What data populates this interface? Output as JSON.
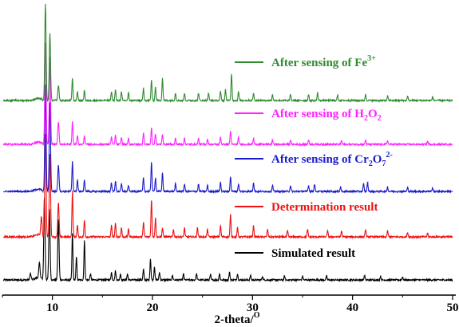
{
  "chart_data": {
    "type": "line",
    "xlabel": "2-theta/",
    "xlabel_unit": "O",
    "xlim": [
      5,
      50
    ],
    "x_ticks": [
      10,
      20,
      30,
      40,
      50
    ],
    "y_axis_visible": false,
    "grid": false,
    "colors": {
      "Fe": "#2e8b2e",
      "H2O2": "#ff22ff",
      "Cr2O7": "#1a1acc",
      "Determination": "#ee1111",
      "Simulated": "#000000"
    },
    "legend": [
      {
        "key": "Fe",
        "parts": [
          {
            "t": "After sensing of Fe"
          },
          {
            "t": "3+",
            "sup": true
          }
        ]
      },
      {
        "key": "H2O2",
        "parts": [
          {
            "t": "After sensing of H"
          },
          {
            "t": "2",
            "sub": true
          },
          {
            "t": "O"
          },
          {
            "t": "2",
            "sub": true
          }
        ]
      },
      {
        "key": "Cr2O7",
        "parts": [
          {
            "t": "After sensing of Cr"
          },
          {
            "t": "2",
            "sub": true
          },
          {
            "t": "O"
          },
          {
            "t": "7",
            "sub": true
          },
          {
            "t": "2-",
            "sup": true
          }
        ]
      },
      {
        "key": "Determination",
        "parts": [
          {
            "t": "Determination result"
          }
        ]
      },
      {
        "key": "Simulated",
        "parts": [
          {
            "t": "Simulated result"
          }
        ]
      }
    ],
    "series": [
      {
        "key": "Simulated",
        "peaks": [
          [
            7.8,
            8
          ],
          [
            8.7,
            20
          ],
          [
            9.2,
            110
          ],
          [
            9.7,
            95
          ],
          [
            10.6,
            80
          ],
          [
            12.0,
            62
          ],
          [
            12.4,
            30
          ],
          [
            13.2,
            52
          ],
          [
            13.8,
            8
          ],
          [
            15.9,
            10
          ],
          [
            16.3,
            12
          ],
          [
            16.8,
            8
          ],
          [
            17.5,
            8
          ],
          [
            19.1,
            14
          ],
          [
            19.8,
            28
          ],
          [
            20.2,
            18
          ],
          [
            20.7,
            10
          ],
          [
            22.0,
            6
          ],
          [
            23.1,
            8
          ],
          [
            24.4,
            8
          ],
          [
            25.8,
            7
          ],
          [
            26.7,
            8
          ],
          [
            27.7,
            10
          ],
          [
            28.5,
            8
          ],
          [
            29.8,
            6
          ],
          [
            31.0,
            5
          ],
          [
            33.2,
            5
          ],
          [
            35.0,
            5
          ],
          [
            37.4,
            5
          ],
          [
            41.2,
            6
          ],
          [
            42.8,
            5
          ],
          [
            45.0,
            4
          ]
        ]
      },
      {
        "key": "Determination",
        "peaks": [
          [
            8.9,
            25
          ],
          [
            9.3,
            135
          ],
          [
            9.75,
            110
          ],
          [
            10.6,
            45
          ],
          [
            12.0,
            60
          ],
          [
            12.5,
            15
          ],
          [
            13.2,
            22
          ],
          [
            15.9,
            15
          ],
          [
            16.3,
            18
          ],
          [
            16.9,
            12
          ],
          [
            17.6,
            10
          ],
          [
            19.1,
            20
          ],
          [
            19.9,
            50
          ],
          [
            20.3,
            25
          ],
          [
            21.0,
            12
          ],
          [
            22.1,
            10
          ],
          [
            23.2,
            12
          ],
          [
            24.5,
            12
          ],
          [
            25.5,
            10
          ],
          [
            26.8,
            15
          ],
          [
            27.8,
            30
          ],
          [
            28.5,
            12
          ],
          [
            30.1,
            15
          ],
          [
            31.5,
            10
          ],
          [
            33.5,
            8
          ],
          [
            35.5,
            10
          ],
          [
            37.5,
            8
          ],
          [
            38.9,
            8
          ],
          [
            41.3,
            10
          ],
          [
            43.5,
            8
          ],
          [
            45.5,
            6
          ],
          [
            47.5,
            5
          ]
        ]
      },
      {
        "key": "Cr2O7",
        "peaks": [
          [
            9.3,
            140
          ],
          [
            9.75,
            118
          ],
          [
            10.6,
            35
          ],
          [
            12.0,
            40
          ],
          [
            12.5,
            15
          ],
          [
            13.2,
            15
          ],
          [
            15.9,
            12
          ],
          [
            16.3,
            14
          ],
          [
            16.9,
            10
          ],
          [
            17.6,
            8
          ],
          [
            19.1,
            18
          ],
          [
            19.9,
            40
          ],
          [
            20.3,
            18
          ],
          [
            21.0,
            25
          ],
          [
            22.3,
            10
          ],
          [
            23.2,
            10
          ],
          [
            24.6,
            10
          ],
          [
            25.5,
            8
          ],
          [
            26.8,
            12
          ],
          [
            27.8,
            20
          ],
          [
            28.6,
            10
          ],
          [
            30.1,
            12
          ],
          [
            32.0,
            8
          ],
          [
            33.8,
            8
          ],
          [
            35.6,
            8
          ],
          [
            36.2,
            10
          ],
          [
            38.8,
            6
          ],
          [
            41.1,
            10
          ],
          [
            41.5,
            12
          ],
          [
            43.5,
            6
          ],
          [
            45.5,
            5
          ],
          [
            48.0,
            5
          ]
        ]
      },
      {
        "key": "H2O2",
        "peaks": [
          [
            9.3,
            135
          ],
          [
            9.75,
            115
          ],
          [
            10.6,
            30
          ],
          [
            12.0,
            30
          ],
          [
            12.5,
            12
          ],
          [
            13.2,
            12
          ],
          [
            15.9,
            10
          ],
          [
            16.3,
            12
          ],
          [
            16.9,
            9
          ],
          [
            17.6,
            8
          ],
          [
            19.1,
            16
          ],
          [
            19.9,
            22
          ],
          [
            20.3,
            14
          ],
          [
            21.0,
            14
          ],
          [
            22.3,
            8
          ],
          [
            23.2,
            8
          ],
          [
            24.6,
            8
          ],
          [
            25.5,
            7
          ],
          [
            26.8,
            10
          ],
          [
            27.8,
            18
          ],
          [
            28.6,
            9
          ],
          [
            30.1,
            8
          ],
          [
            32.0,
            6
          ],
          [
            33.8,
            6
          ],
          [
            35.6,
            6
          ],
          [
            38.9,
            5
          ],
          [
            41.3,
            6
          ],
          [
            43.5,
            5
          ],
          [
            47.5,
            4
          ]
        ]
      },
      {
        "key": "Fe",
        "peaks": [
          [
            9.3,
            128
          ],
          [
            9.75,
            88
          ],
          [
            10.6,
            20
          ],
          [
            12.0,
            30
          ],
          [
            12.5,
            12
          ],
          [
            13.2,
            14
          ],
          [
            15.9,
            12
          ],
          [
            16.3,
            14
          ],
          [
            16.9,
            11
          ],
          [
            17.6,
            10
          ],
          [
            19.1,
            16
          ],
          [
            19.9,
            28
          ],
          [
            20.3,
            18
          ],
          [
            21.0,
            30
          ],
          [
            22.3,
            10
          ],
          [
            23.2,
            10
          ],
          [
            24.6,
            10
          ],
          [
            25.6,
            10
          ],
          [
            26.8,
            12
          ],
          [
            27.3,
            14
          ],
          [
            27.9,
            36
          ],
          [
            28.6,
            12
          ],
          [
            30.1,
            10
          ],
          [
            32.0,
            8
          ],
          [
            33.8,
            8
          ],
          [
            35.6,
            8
          ],
          [
            36.5,
            10
          ],
          [
            38.5,
            7
          ],
          [
            41.3,
            8
          ],
          [
            43.5,
            6
          ],
          [
            45.5,
            6
          ],
          [
            48.0,
            5
          ]
        ]
      }
    ]
  }
}
